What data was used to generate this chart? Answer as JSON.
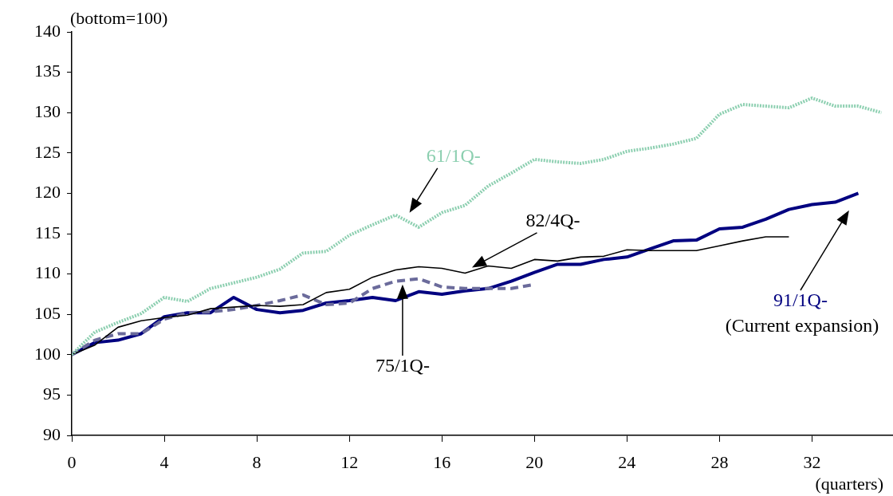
{
  "chart_data": {
    "type": "line",
    "xlabel": "(quarters)",
    "ylabel": "(bottom=100)",
    "xlim": [
      0,
      35.5
    ],
    "xticks": [
      0,
      4,
      8,
      12,
      16,
      20,
      24,
      28,
      32
    ],
    "ylim": [
      90,
      140
    ],
    "yticks": [
      90,
      95,
      100,
      105,
      110,
      115,
      120,
      125,
      130,
      135,
      140
    ],
    "grid": false,
    "legend": false,
    "marker": "none",
    "x": [
      0,
      1,
      2,
      3,
      4,
      5,
      6,
      7,
      8,
      9,
      10,
      11,
      12,
      13,
      14,
      15,
      16,
      17,
      18,
      19,
      20,
      21,
      22,
      23,
      24,
      25,
      26,
      27,
      28,
      29,
      30,
      31,
      32,
      33,
      34,
      35
    ],
    "series": [
      {
        "name": "61/1Q-",
        "color": "#8ccfb0",
        "line_style": "dotted",
        "values": [
          100,
          102.8,
          104,
          105.1,
          107.1,
          106.6,
          108.2,
          108.9,
          109.6,
          110.6,
          112.6,
          112.8,
          114.8,
          116.1,
          117.3,
          115.8,
          117.6,
          118.5,
          120.9,
          122.5,
          124.2,
          123.9,
          123.7,
          124.2,
          125.2,
          125.6,
          126.1,
          126.8,
          129.8,
          131,
          130.8,
          130.6,
          131.8,
          130.8,
          130.8,
          130
        ]
      },
      {
        "name": "82/4Q-",
        "color": "#000000",
        "line_style": "solid",
        "values": [
          100,
          101.2,
          103.4,
          104.2,
          104.6,
          104.9,
          105.7,
          105.9,
          106.1,
          106,
          106.2,
          107.7,
          108.1,
          109.6,
          110.5,
          110.9,
          110.7,
          110.1,
          111,
          110.7,
          111.8,
          111.6,
          112.1,
          112.2,
          113,
          112.9,
          112.9,
          112.9,
          113.5,
          114.1,
          114.6,
          114.6,
          null,
          null,
          null,
          null
        ]
      },
      {
        "name": "75/1Q-",
        "color": "#6b6b9b",
        "line_style": "dashed",
        "values": [
          100,
          101.8,
          102.6,
          102.6,
          104.4,
          105.2,
          105.3,
          105.6,
          106.1,
          106.7,
          107.4,
          106.2,
          106.4,
          108.2,
          109.1,
          109.4,
          108.4,
          108.2,
          108.2,
          108.2,
          108.7,
          null,
          null,
          null,
          null,
          null,
          null,
          null,
          null,
          null,
          null,
          null,
          null,
          null,
          null,
          null
        ]
      },
      {
        "name": "91/1Q-",
        "color": "#000080",
        "line_style": "solid",
        "values": [
          100,
          101.5,
          101.8,
          102.6,
          104.7,
          105.2,
          105.2,
          107.1,
          105.6,
          105.2,
          105.5,
          106.4,
          106.7,
          107.1,
          106.7,
          107.8,
          107.5,
          107.9,
          108.2,
          109.1,
          110.2,
          111.2,
          111.2,
          111.8,
          112.1,
          113.1,
          114.1,
          114.2,
          115.6,
          115.8,
          116.8,
          118,
          118.6,
          118.9,
          120,
          null
        ]
      }
    ],
    "annotations": [
      "(Current expansion)"
    ]
  }
}
